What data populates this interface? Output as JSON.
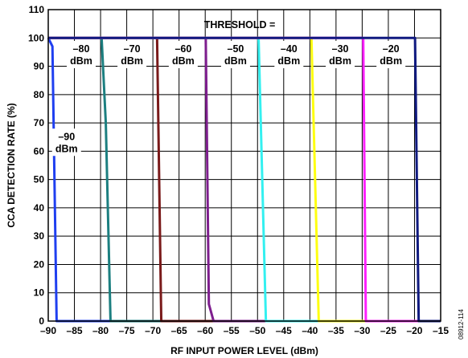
{
  "chart_data": {
    "type": "line",
    "xlabel": "RF INPUT POWER LEVEL (dBm)",
    "ylabel": "CCA DETECTION RATE (%)",
    "xlim": [
      -90,
      -15
    ],
    "ylim": [
      0,
      110
    ],
    "x_ticks": [
      -90,
      -85,
      -80,
      -75,
      -70,
      -65,
      -60,
      -55,
      -50,
      -45,
      -40,
      -35,
      -30,
      -25,
      -20,
      -15
    ],
    "x_tick_labels": [
      "–90",
      "–85",
      "–80",
      "–75",
      "–70",
      "–65",
      "–60",
      "–55",
      "–50",
      "–45",
      "–40",
      "–35",
      "–30",
      "–25",
      "–20",
      "–15"
    ],
    "y_ticks": [
      0,
      10,
      20,
      30,
      40,
      50,
      60,
      70,
      80,
      90,
      100,
      110
    ],
    "grid": true,
    "legend_title": "THRESHOLD =",
    "series": [
      {
        "name": "–90 dBm",
        "color": "#1f3ff0",
        "points": [
          [
            -90,
            100
          ],
          [
            -89.2,
            97
          ],
          [
            -88.4,
            0
          ],
          [
            -15,
            0
          ]
        ]
      },
      {
        "name": "–80 dBm",
        "color": "#1c7f80",
        "points": [
          [
            -90,
            100
          ],
          [
            -79.8,
            100
          ],
          [
            -79,
            70
          ],
          [
            -78.1,
            0
          ],
          [
            -15,
            0
          ]
        ]
      },
      {
        "name": "–70 dBm",
        "color": "#7a1a1a",
        "points": [
          [
            -90,
            100
          ],
          [
            -69.2,
            100
          ],
          [
            -68.4,
            0
          ],
          [
            -15,
            0
          ]
        ]
      },
      {
        "name": "–60 dBm",
        "color": "#7e1e8e",
        "points": [
          [
            -90,
            100
          ],
          [
            -59.9,
            100
          ],
          [
            -59.3,
            6
          ],
          [
            -58.4,
            0
          ],
          [
            -15,
            0
          ]
        ]
      },
      {
        "name": "–50 dBm",
        "color": "#33f0f0",
        "points": [
          [
            -90,
            100
          ],
          [
            -49.8,
            100
          ],
          [
            -48.4,
            0
          ],
          [
            -15,
            0
          ]
        ]
      },
      {
        "name": "–40 dBm",
        "color": "#ffff10",
        "points": [
          [
            -90,
            100
          ],
          [
            -39.7,
            100
          ],
          [
            -38.3,
            0
          ],
          [
            -15,
            0
          ]
        ]
      },
      {
        "name": "–30 dBm",
        "color": "#ff20ff",
        "points": [
          [
            -90,
            100
          ],
          [
            -29.8,
            100
          ],
          [
            -29.3,
            0
          ],
          [
            -15,
            0
          ]
        ]
      },
      {
        "name": "–20 dBm",
        "color": "#101a80",
        "points": [
          [
            -90,
            100
          ],
          [
            -19.9,
            100
          ],
          [
            -19.2,
            0
          ],
          [
            -15,
            0
          ]
        ]
      }
    ],
    "annotations": [
      {
        "lines": [
          "–80",
          "dBm"
        ],
        "x": -83.7,
        "y": 95
      },
      {
        "lines": [
          "–70",
          "dBm"
        ],
        "x": -74,
        "y": 95
      },
      {
        "lines": [
          "–60",
          "dBm"
        ],
        "x": -64.2,
        "y": 95
      },
      {
        "lines": [
          "–50",
          "dBm"
        ],
        "x": -54.2,
        "y": 95
      },
      {
        "lines": [
          "–40",
          "dBm"
        ],
        "x": -44,
        "y": 95
      },
      {
        "lines": [
          "–30",
          "dBm"
        ],
        "x": -34.2,
        "y": 95
      },
      {
        "lines": [
          "–20",
          "dBm"
        ],
        "x": -24.5,
        "y": 95
      },
      {
        "lines": [
          "–90",
          "dBm"
        ],
        "x": -86.5,
        "y": 64
      }
    ],
    "figure_id": "08912-114"
  }
}
